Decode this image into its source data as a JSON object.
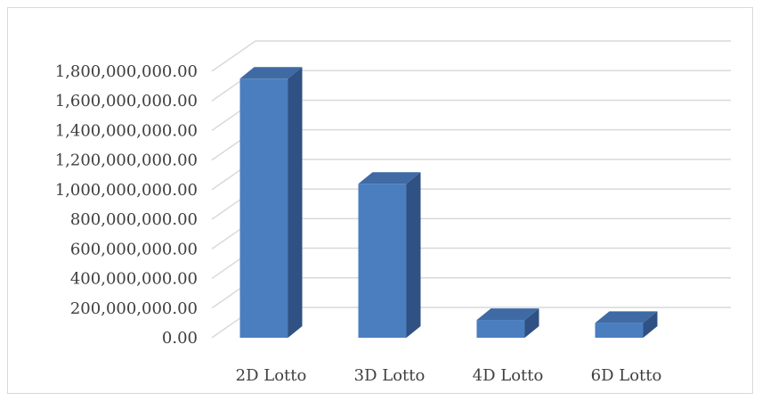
{
  "chart_data": {
    "type": "bar",
    "style": "3d-column",
    "categories": [
      "2D Lotto",
      "3D Lotto",
      "4D Lotto",
      "6D Lotto"
    ],
    "values": [
      1750000000,
      1040000000,
      120000000,
      100000000
    ],
    "ylim": [
      0,
      1800000000
    ],
    "ytick_step": 200000000,
    "ytick_labels": [
      "0.00",
      "200,000,000.00",
      "400,000,000.00",
      "600,000,000.00",
      "800,000,000.00",
      "1,000,000,000.00",
      "1,200,000,000.00",
      "1,400,000,000.00",
      "1,600,000,000.00",
      "1,800,000,000.00"
    ],
    "title": "",
    "xlabel": "",
    "ylabel": "",
    "grid": true,
    "legend": "none",
    "colors": {
      "front": "#4a7ebf",
      "side": "#2f5183",
      "top": "#3f6aa4",
      "grid": "#d9d9d9",
      "text": "#404040"
    }
  }
}
